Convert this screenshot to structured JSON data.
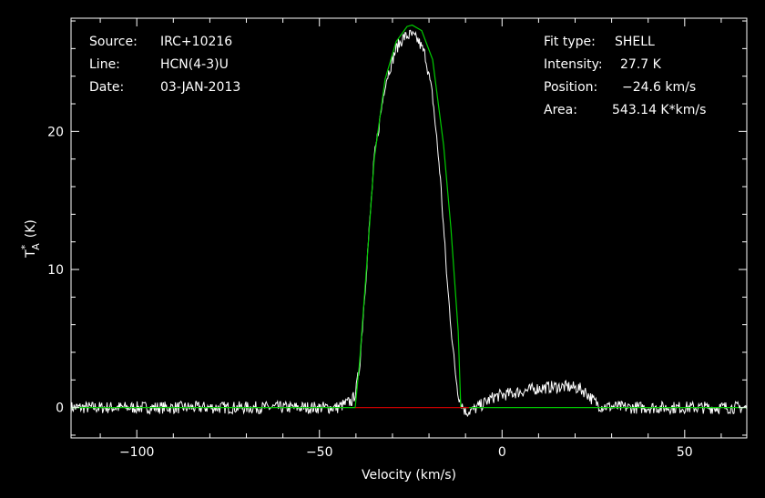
{
  "info_left": {
    "source_label": "Source:",
    "source_value": "IRC+10216",
    "line_label": "Line:",
    "line_value": "HCN(4-3)U",
    "date_label": "Date:",
    "date_value": "03-JAN-2013"
  },
  "info_right": {
    "fit_type_label": "Fit type:",
    "fit_type_value": "SHELL",
    "intensity_label": "Intensity:",
    "intensity_value": "27.7 K",
    "position_label": "Position:",
    "position_value": "−24.6 km/s",
    "area_label": "Area:",
    "area_value": "543.14 K*km/s"
  },
  "colors": {
    "background": "#000000",
    "spectrum": "#ffffff",
    "fit": "#00cc00",
    "baseline": "#cc0000",
    "axes": "#ffffff"
  },
  "chart_data": {
    "type": "line",
    "xlabel": "Velocity (km/s)",
    "ylabel_main": "T",
    "ylabel_sup": "*",
    "ylabel_sub": "A",
    "ylabel_unit": "(K)",
    "xlim": [
      -118,
      67
    ],
    "ylim": [
      -2.2,
      28.2
    ],
    "xticks": [
      -100,
      -50,
      0,
      50
    ],
    "xtick_labels": [
      "−100",
      "−50",
      "0",
      "50"
    ],
    "yticks": [
      0,
      10,
      20
    ],
    "ytick_labels": [
      "0",
      "10",
      "20"
    ],
    "grid": false,
    "series": [
      {
        "role": "observed spectrum",
        "x": [
          -118,
          -100,
          -80,
          -60,
          -45,
          -41,
          -40,
          -39,
          -37,
          -35,
          -32,
          -29,
          -27,
          -25,
          -23,
          -21,
          -19,
          -17,
          -15,
          -13,
          -12,
          -11,
          -10,
          -8,
          -5,
          -2,
          2,
          6,
          10,
          14,
          18,
          21,
          23,
          25,
          27,
          35,
          50,
          67
        ],
        "y": [
          0.0,
          0.0,
          0.0,
          0.0,
          0.0,
          0.5,
          1.2,
          3.0,
          10.5,
          18.0,
          23.5,
          26.0,
          26.8,
          27.0,
          26.6,
          25.5,
          22.5,
          17.0,
          9.0,
          3.0,
          1.0,
          0.2,
          -0.3,
          -0.2,
          0.3,
          0.8,
          1.0,
          1.2,
          1.4,
          1.5,
          1.5,
          1.4,
          1.1,
          0.5,
          0.1,
          0.0,
          0.0,
          0.0
        ]
      },
      {
        "role": "fit",
        "x": [
          -118,
          -40.2,
          -39,
          -37,
          -35,
          -32,
          -29,
          -26,
          -24.6,
          -22,
          -19,
          -16,
          -14,
          -12,
          -11.3,
          -9,
          25,
          67
        ],
        "y": [
          0.0,
          0.0,
          3.3,
          10.5,
          18.0,
          23.8,
          26.5,
          27.6,
          27.7,
          27.3,
          25.2,
          19.0,
          13.0,
          5.5,
          0.0,
          0.0,
          0.0,
          0.0
        ]
      },
      {
        "role": "baseline window",
        "x": [
          -40.2,
          -9
        ],
        "y": [
          0.0,
          0.0
        ]
      }
    ]
  }
}
